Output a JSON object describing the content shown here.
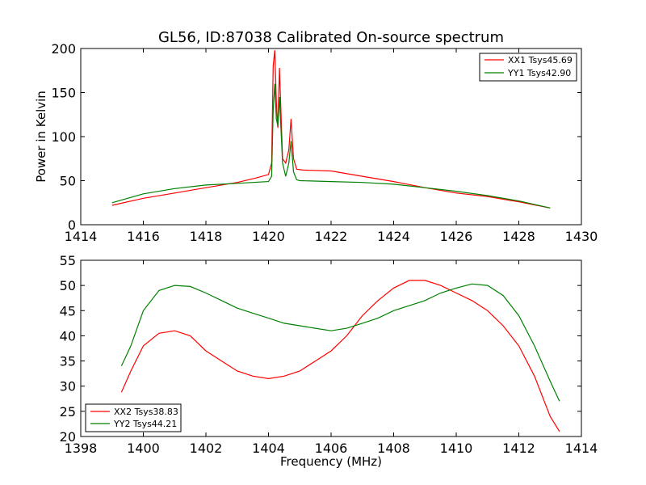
{
  "chart_data": [
    {
      "type": "line",
      "title": "GL56, ID:87038 Calibrated On-source spectrum",
      "xlabel": "",
      "ylabel": "Power in Kelvin",
      "xlim": [
        1414,
        1430
      ],
      "ylim": [
        0,
        200
      ],
      "xticks": [
        1414,
        1416,
        1418,
        1420,
        1422,
        1424,
        1426,
        1428,
        1430
      ],
      "yticks": [
        0,
        50,
        100,
        150,
        200
      ],
      "legend_position": "top-right",
      "series": [
        {
          "name": "XX1 Tsys45.69",
          "color": "#ff0000",
          "points": [
            [
              1415,
              22
            ],
            [
              1416,
              30
            ],
            [
              1417,
              36
            ],
            [
              1418,
              42
            ],
            [
              1419,
              48
            ],
            [
              1419.6,
              53
            ],
            [
              1420,
              57
            ],
            [
              1420.1,
              70
            ],
            [
              1420.15,
              180
            ],
            [
              1420.2,
              198
            ],
            [
              1420.25,
              140
            ],
            [
              1420.3,
              110
            ],
            [
              1420.35,
              178
            ],
            [
              1420.45,
              75
            ],
            [
              1420.55,
              70
            ],
            [
              1420.65,
              85
            ],
            [
              1420.72,
              120
            ],
            [
              1420.8,
              75
            ],
            [
              1420.9,
              63
            ],
            [
              1421.1,
              62
            ],
            [
              1422,
              61
            ],
            [
              1423,
              55
            ],
            [
              1424,
              49
            ],
            [
              1425,
              42
            ],
            [
              1426,
              36
            ],
            [
              1427,
              32
            ],
            [
              1428,
              26
            ],
            [
              1429,
              19
            ]
          ]
        },
        {
          "name": "YY1 Tsys42.90",
          "color": "#008000",
          "points": [
            [
              1415,
              25
            ],
            [
              1416,
              35
            ],
            [
              1417,
              41
            ],
            [
              1418,
              45
            ],
            [
              1419,
              47
            ],
            [
              1420,
              49
            ],
            [
              1420.1,
              55
            ],
            [
              1420.15,
              130
            ],
            [
              1420.2,
              160
            ],
            [
              1420.25,
              120
            ],
            [
              1420.3,
              112
            ],
            [
              1420.35,
              145
            ],
            [
              1420.45,
              70
            ],
            [
              1420.55,
              55
            ],
            [
              1420.65,
              70
            ],
            [
              1420.72,
              95
            ],
            [
              1420.8,
              60
            ],
            [
              1420.9,
              51
            ],
            [
              1421,
              50
            ],
            [
              1422,
              49
            ],
            [
              1423,
              48
            ],
            [
              1424,
              46
            ],
            [
              1425,
              42
            ],
            [
              1426,
              38
            ],
            [
              1427,
              33
            ],
            [
              1428,
              27
            ],
            [
              1429,
              19
            ]
          ]
        }
      ]
    },
    {
      "type": "line",
      "title": "",
      "xlabel": "Frequency (MHz)",
      "ylabel": "",
      "xlim": [
        1398,
        1414
      ],
      "ylim": [
        20,
        55
      ],
      "xticks": [
        1398,
        1400,
        1402,
        1404,
        1406,
        1408,
        1410,
        1412,
        1414
      ],
      "yticks": [
        20,
        25,
        30,
        35,
        40,
        45,
        50,
        55
      ],
      "legend_position": "bottom-left",
      "series": [
        {
          "name": "XX2 Tsys38.83",
          "color": "#ff0000",
          "points": [
            [
              1399.3,
              28.8
            ],
            [
              1399.6,
              33
            ],
            [
              1400,
              38
            ],
            [
              1400.5,
              40.5
            ],
            [
              1401,
              41
            ],
            [
              1401.5,
              40
            ],
            [
              1402,
              37
            ],
            [
              1402.5,
              35
            ],
            [
              1403,
              33
            ],
            [
              1403.5,
              32
            ],
            [
              1404,
              31.5
            ],
            [
              1404.5,
              32
            ],
            [
              1405,
              33
            ],
            [
              1405.5,
              35
            ],
            [
              1406,
              37
            ],
            [
              1406.5,
              40
            ],
            [
              1407,
              44
            ],
            [
              1407.5,
              47
            ],
            [
              1408,
              49.5
            ],
            [
              1408.5,
              51
            ],
            [
              1409,
              51
            ],
            [
              1409.5,
              50
            ],
            [
              1410,
              48.5
            ],
            [
              1410.5,
              47
            ],
            [
              1411,
              45
            ],
            [
              1411.5,
              42
            ],
            [
              1412,
              38
            ],
            [
              1412.5,
              32
            ],
            [
              1413,
              24
            ],
            [
              1413.3,
              21
            ]
          ]
        },
        {
          "name": "YY2 Tsys44.21",
          "color": "#008000",
          "points": [
            [
              1399.3,
              34
            ],
            [
              1399.6,
              38
            ],
            [
              1400,
              45
            ],
            [
              1400.5,
              49
            ],
            [
              1401,
              50
            ],
            [
              1401.5,
              49.8
            ],
            [
              1402,
              48.5
            ],
            [
              1402.5,
              47
            ],
            [
              1403,
              45.5
            ],
            [
              1403.5,
              44.5
            ],
            [
              1404,
              43.5
            ],
            [
              1404.5,
              42.5
            ],
            [
              1405,
              42
            ],
            [
              1405.5,
              41.5
            ],
            [
              1406,
              41
            ],
            [
              1406.5,
              41.5
            ],
            [
              1407,
              42.5
            ],
            [
              1407.5,
              43.5
            ],
            [
              1408,
              45
            ],
            [
              1408.5,
              46
            ],
            [
              1409,
              47
            ],
            [
              1409.5,
              48.5
            ],
            [
              1410,
              49.5
            ],
            [
              1410.5,
              50.3
            ],
            [
              1411,
              50
            ],
            [
              1411.5,
              48
            ],
            [
              1412,
              44
            ],
            [
              1412.5,
              38
            ],
            [
              1413,
              31
            ],
            [
              1413.3,
              27
            ]
          ]
        }
      ]
    }
  ]
}
